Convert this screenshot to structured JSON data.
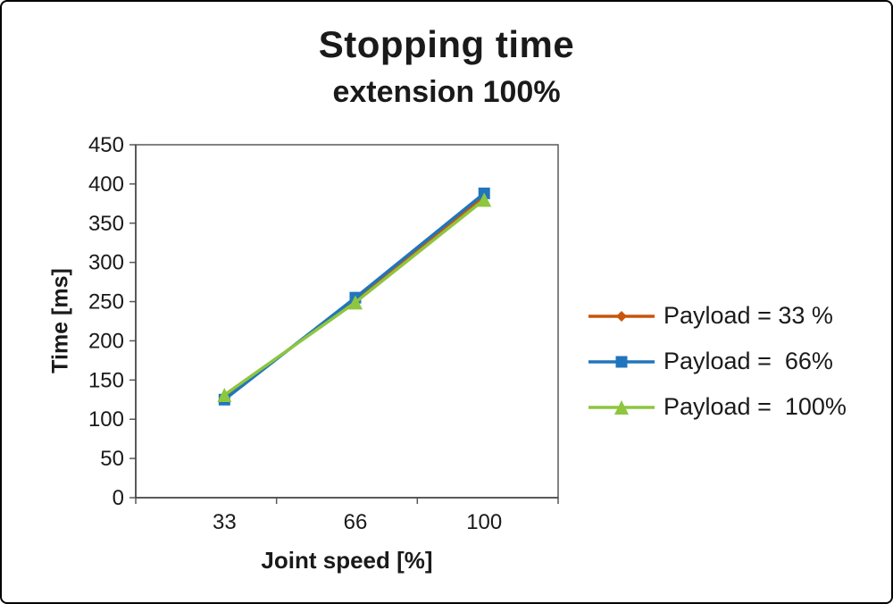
{
  "chart_data": {
    "type": "line",
    "title": "Stopping time",
    "subtitle": "extension 100%",
    "xlabel": "Joint speed [%]",
    "ylabel": "Time [ms]",
    "categories": [
      "33",
      "66",
      "100"
    ],
    "ylim": [
      0,
      450
    ],
    "ytick_step": 50,
    "grid": false,
    "legend_position": "right",
    "series": [
      {
        "name": "Payload = 33 %",
        "marker": "diamond",
        "color": "#c9540c",
        "values": [
          128,
          252,
          384
        ]
      },
      {
        "name": "Payload =  66%",
        "marker": "square",
        "color": "#2175bc",
        "values": [
          125,
          255,
          388
        ]
      },
      {
        "name": "Payload =  100%",
        "marker": "triangle",
        "color": "#8dc63f",
        "values": [
          131,
          249,
          380
        ]
      }
    ]
  }
}
